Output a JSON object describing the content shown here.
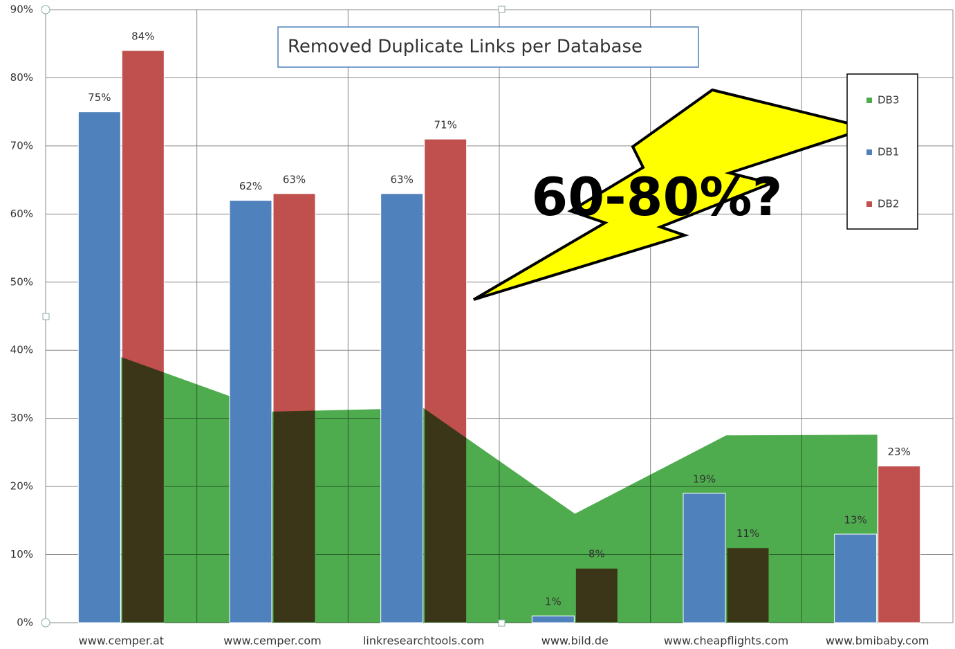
{
  "chart_data": {
    "type": "bar",
    "title": "Removed  Duplicate Links per Database",
    "annotation": "60-80%?",
    "categories": [
      "www.cemper.at",
      "www.cemper.com",
      "linkresearchtools.com",
      "www.bild.de",
      "www.cheapflights.com",
      "www.bmibaby.com"
    ],
    "series": [
      {
        "name": "DB3",
        "type": "area",
        "color": "#4eac4e",
        "values": [
          39,
          31,
          31.5,
          16,
          27.5,
          27.6
        ]
      },
      {
        "name": "DB1",
        "type": "bar",
        "color": "#4f81bd",
        "values": [
          75,
          62,
          63,
          1,
          19,
          13
        ],
        "value_labels": [
          "75%",
          "62%",
          "63%",
          "1%",
          "19%",
          "13%"
        ]
      },
      {
        "name": "DB2",
        "type": "bar",
        "color": "#c0504d",
        "values": [
          84,
          63,
          71,
          8,
          11,
          23
        ],
        "value_labels": [
          "84%",
          "63%",
          "71%",
          "8%",
          "11%",
          "23%"
        ]
      }
    ],
    "ylim": [
      0,
      90
    ],
    "yticks": [
      {
        "value": 0,
        "label": "0%"
      },
      {
        "value": 10,
        "label": "10%"
      },
      {
        "value": 20,
        "label": "20%"
      },
      {
        "value": 30,
        "label": "30%"
      },
      {
        "value": 40,
        "label": "40%"
      },
      {
        "value": 50,
        "label": "50%"
      },
      {
        "value": 60,
        "label": "60%"
      },
      {
        "value": 70,
        "label": "70%"
      },
      {
        "value": 80,
        "label": "80%"
      },
      {
        "value": 90,
        "label": "90%"
      }
    ],
    "grid": true,
    "legend": "right"
  }
}
